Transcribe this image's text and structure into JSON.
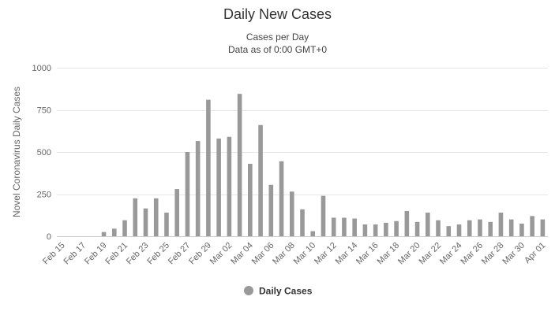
{
  "chart_data": {
    "type": "bar",
    "title": "Daily New Cases",
    "subtitle_lines": [
      "Cases per Day",
      "Data as of 0:00 GMT+0"
    ],
    "ylabel": "Novel Coronavirus Daily Cases",
    "xlabel": "",
    "ylim": [
      0,
      1000
    ],
    "yticks": [
      0,
      250,
      500,
      750,
      1000
    ],
    "yticks_display": [
      "0",
      "250",
      "500",
      "750",
      "1000"
    ],
    "grid": true,
    "legend": {
      "position": "bottom-center"
    },
    "bar_color": "#999999",
    "categories": [
      "Feb 15",
      "Feb 16",
      "Feb 17",
      "Feb 18",
      "Feb 19",
      "Feb 20",
      "Feb 21",
      "Feb 22",
      "Feb 23",
      "Feb 24",
      "Feb 25",
      "Feb 26",
      "Feb 27",
      "Feb 28",
      "Feb 29",
      "Mar 01",
      "Mar 02",
      "Mar 03",
      "Mar 04",
      "Mar 05",
      "Mar 06",
      "Mar 07",
      "Mar 08",
      "Mar 09",
      "Mar 10",
      "Mar 11",
      "Mar 12",
      "Mar 13",
      "Mar 14",
      "Mar 15",
      "Mar 16",
      "Mar 17",
      "Mar 18",
      "Mar 19",
      "Mar 20",
      "Mar 21",
      "Mar 22",
      "Mar 23",
      "Mar 24",
      "Mar 25",
      "Mar 26",
      "Mar 27",
      "Mar 28",
      "Mar 29",
      "Mar 30",
      "Mar 31",
      "Apr 01"
    ],
    "xtick_labels": [
      "Feb 15",
      "Feb 17",
      "Feb 19",
      "Feb 21",
      "Feb 23",
      "Feb 25",
      "Feb 27",
      "Feb 29",
      "Mar 02",
      "Mar 04",
      "Mar 06",
      "Mar 08",
      "Mar 10",
      "Mar 12",
      "Mar 14",
      "Mar 16",
      "Mar 18",
      "Mar 20",
      "Mar 22",
      "Mar 24",
      "Mar 26",
      "Mar 28",
      "Mar 30",
      "Apr 01"
    ],
    "series": [
      {
        "name": "Daily Cases",
        "values": [
          0,
          0,
          0,
          0,
          25,
          45,
          95,
          225,
          165,
          225,
          140,
          280,
          500,
          565,
          810,
          580,
          590,
          845,
          430,
          660,
          305,
          445,
          265,
          160,
          30,
          240,
          110,
          110,
          105,
          70,
          70,
          80,
          90,
          150,
          85,
          140,
          95,
          60,
          70,
          95,
          100,
          85,
          140,
          100,
          75,
          120,
          100
        ]
      }
    ]
  }
}
